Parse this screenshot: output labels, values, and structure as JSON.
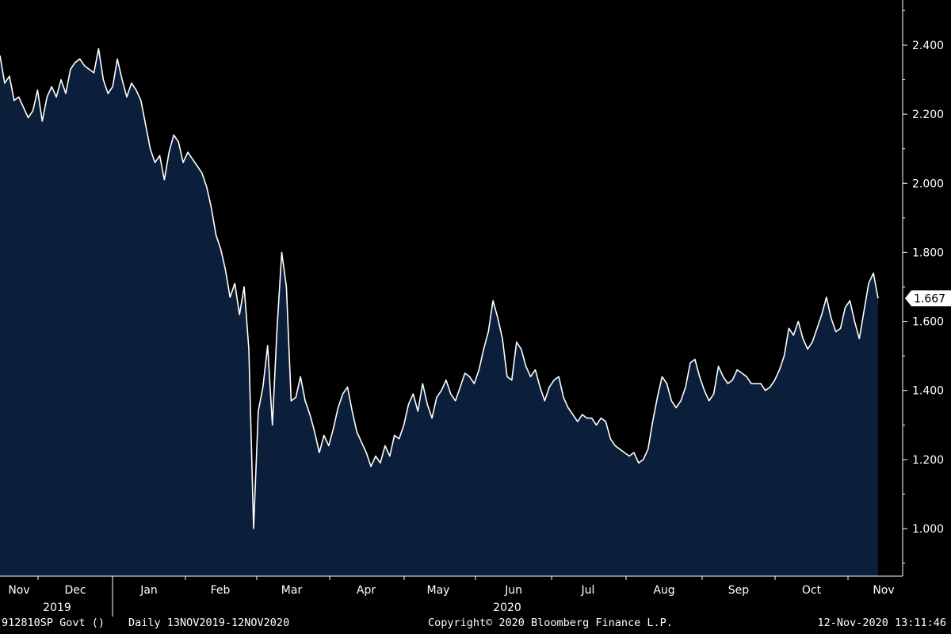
{
  "chart_data": {
    "type": "area",
    "x_labels": [
      "Nov",
      "Dec",
      "Jan",
      "Feb",
      "Mar",
      "Apr",
      "May",
      "Jun",
      "Jul",
      "Aug",
      "Sep",
      "Oct",
      "Nov"
    ],
    "year_labels": [
      "2019",
      "2020"
    ],
    "y_ticks": [
      "1.000",
      "1.200",
      "1.400",
      "1.600",
      "1.800",
      "2.000",
      "2.200",
      "2.400"
    ],
    "ylim": [
      0.86,
      2.52
    ],
    "last_value": "1.667",
    "grid": false,
    "colors": {
      "background": "#000000",
      "area_fill": "#0b1f3b",
      "line": "#ffffff",
      "axis": "#ffffff"
    },
    "values": [
      2.37,
      2.29,
      2.31,
      2.24,
      2.25,
      2.22,
      2.19,
      2.21,
      2.27,
      2.18,
      2.25,
      2.28,
      2.25,
      2.3,
      2.26,
      2.33,
      2.35,
      2.36,
      2.34,
      2.33,
      2.32,
      2.39,
      2.3,
      2.26,
      2.28,
      2.36,
      2.3,
      2.25,
      2.29,
      2.27,
      2.24,
      2.17,
      2.1,
      2.06,
      2.08,
      2.01,
      2.09,
      2.14,
      2.12,
      2.06,
      2.09,
      2.07,
      2.05,
      2.03,
      1.99,
      1.93,
      1.85,
      1.81,
      1.75,
      1.67,
      1.71,
      1.62,
      1.7,
      1.52,
      1.0,
      1.34,
      1.41,
      1.53,
      1.3,
      1.58,
      1.8,
      1.7,
      1.37,
      1.38,
      1.44,
      1.37,
      1.33,
      1.28,
      1.22,
      1.27,
      1.24,
      1.29,
      1.35,
      1.39,
      1.41,
      1.34,
      1.28,
      1.25,
      1.22,
      1.18,
      1.21,
      1.19,
      1.24,
      1.21,
      1.27,
      1.26,
      1.3,
      1.36,
      1.39,
      1.34,
      1.42,
      1.36,
      1.32,
      1.38,
      1.4,
      1.43,
      1.39,
      1.37,
      1.41,
      1.45,
      1.44,
      1.42,
      1.46,
      1.52,
      1.57,
      1.66,
      1.61,
      1.55,
      1.44,
      1.43,
      1.54,
      1.52,
      1.47,
      1.44,
      1.46,
      1.41,
      1.37,
      1.41,
      1.43,
      1.44,
      1.38,
      1.35,
      1.33,
      1.31,
      1.33,
      1.32,
      1.32,
      1.3,
      1.32,
      1.31,
      1.26,
      1.24,
      1.23,
      1.22,
      1.21,
      1.22,
      1.19,
      1.2,
      1.23,
      1.31,
      1.38,
      1.44,
      1.42,
      1.37,
      1.35,
      1.37,
      1.41,
      1.48,
      1.49,
      1.44,
      1.4,
      1.37,
      1.39,
      1.47,
      1.44,
      1.42,
      1.43,
      1.46,
      1.45,
      1.44,
      1.42,
      1.42,
      1.42,
      1.4,
      1.41,
      1.43,
      1.46,
      1.5,
      1.58,
      1.56,
      1.6,
      1.55,
      1.52,
      1.54,
      1.58,
      1.62,
      1.67,
      1.61,
      1.57,
      1.58,
      1.64,
      1.66,
      1.6,
      1.55,
      1.63,
      1.71,
      1.74,
      1.667
    ]
  },
  "footer": {
    "ticker": "912810SP Govt ()",
    "range": "Daily 13NOV2019-12NOV2020",
    "copyright": "Copyright© 2020 Bloomberg Finance L.P.",
    "timestamp": "12-Nov-2020 13:11:46"
  }
}
